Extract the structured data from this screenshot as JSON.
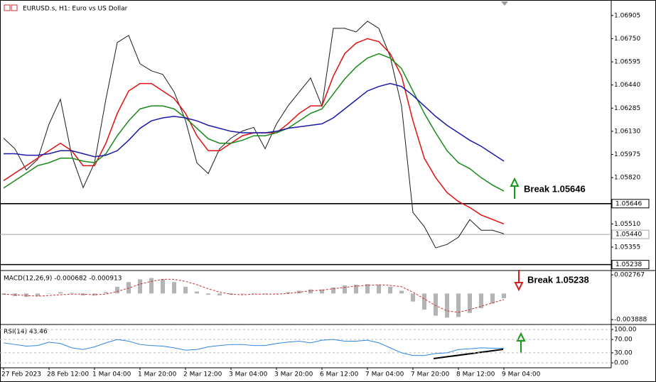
{
  "chart_data": [
    {
      "type": "line",
      "title": "EURUSD.s, H1: Euro vs US Dollar",
      "categories": [
        "27 Feb 2023",
        null,
        null,
        null,
        "28 Feb 12:00",
        null,
        null,
        null,
        "1 Mar 04:00",
        null,
        null,
        null,
        "1 Mar 20:00",
        null,
        null,
        null,
        "2 Mar 12:00",
        null,
        null,
        null,
        "3 Mar 04:00",
        null,
        null,
        null,
        "3 Mar 20:00",
        null,
        null,
        null,
        "6 Mar 12:00",
        null,
        null,
        null,
        "7 Mar 04:00",
        null,
        null,
        null,
        "7 Mar 20:00",
        null,
        null,
        null,
        "8 Mar 12:00",
        null,
        null,
        null,
        "9 Mar 04:00"
      ],
      "series": [
        {
          "color": "#1a1a1a",
          "values": [
            1.06084,
            1.06013,
            1.05871,
            1.05942,
            1.06179,
            1.06345,
            1.05966,
            1.05753,
            1.05919,
            1.06345,
            1.06724,
            1.06772,
            1.06582,
            1.06535,
            1.06511,
            1.06393,
            1.06203,
            1.05919,
            1.05847,
            1.06013,
            1.06084,
            1.06132,
            1.06156,
            1.06013,
            1.06179,
            1.06298,
            1.06393,
            1.06487,
            1.06298,
            1.06819,
            1.06819,
            1.06795,
            1.06867,
            1.06819,
            1.0663,
            1.06298,
            1.05587,
            1.05492,
            1.0535,
            1.05373,
            1.05421,
            1.05539,
            1.05468,
            1.05468,
            1.05444
          ]
        },
        {
          "color": "#e01010",
          "values": [
            1.058,
            1.0585,
            1.059,
            1.0595,
            1.06,
            1.0605,
            1.06,
            1.059,
            1.059,
            1.0605,
            1.0625,
            1.064,
            1.0645,
            1.0645,
            1.064,
            1.0635,
            1.0625,
            1.061,
            1.06,
            1.06,
            1.0605,
            1.061,
            1.0612,
            1.0612,
            1.0612,
            1.0618,
            1.0625,
            1.063,
            1.063,
            1.065,
            1.0665,
            1.0672,
            1.0675,
            1.0673,
            1.0665,
            1.065,
            1.062,
            1.0595,
            1.0582,
            1.0572,
            1.0566,
            1.0562,
            1.0557,
            1.0554,
            1.0551
          ]
        },
        {
          "color": "#1a8a1a",
          "values": [
            1.0575,
            1.058,
            1.0585,
            1.059,
            1.0592,
            1.0595,
            1.0595,
            1.0593,
            1.0592,
            1.0598,
            1.061,
            1.062,
            1.0628,
            1.063,
            1.063,
            1.0628,
            1.0622,
            1.0615,
            1.0608,
            1.0605,
            1.0605,
            1.0607,
            1.061,
            1.061,
            1.0612,
            1.0615,
            1.062,
            1.0625,
            1.0628,
            1.0638,
            1.0648,
            1.0656,
            1.0662,
            1.0665,
            1.0662,
            1.0655,
            1.064,
            1.0625,
            1.0612,
            1.06,
            1.0592,
            1.0588,
            1.0582,
            1.0577,
            1.0573
          ]
        },
        {
          "color": "#1a1aa8",
          "values": [
            1.0598,
            1.0598,
            1.0597,
            1.0597,
            1.0598,
            1.06,
            1.06,
            1.0598,
            1.0596,
            1.0597,
            1.06,
            1.0607,
            1.0615,
            1.062,
            1.0622,
            1.0623,
            1.0622,
            1.062,
            1.0617,
            1.0615,
            1.0613,
            1.0612,
            1.0612,
            1.0612,
            1.0613,
            1.0615,
            1.0616,
            1.0617,
            1.0618,
            1.0622,
            1.0628,
            1.0634,
            1.064,
            1.0643,
            1.0645,
            1.0643,
            1.0637,
            1.063,
            1.0623,
            1.0617,
            1.0612,
            1.0607,
            1.0603,
            1.0598,
            1.0593
          ]
        }
      ],
      "ylim": [
        1.05203,
        1.06985
      ],
      "yticks": [
        {
          "value": 1.06905,
          "label": "1.06905"
        },
        {
          "value": 1.0675,
          "label": "1.06750"
        },
        {
          "value": 1.06595,
          "label": "1.06595"
        },
        {
          "value": 1.0644,
          "label": "1.06440"
        },
        {
          "value": 1.06285,
          "label": "1.06285"
        },
        {
          "value": 1.0613,
          "label": "1.06130"
        },
        {
          "value": 1.05975,
          "label": "1.05975"
        },
        {
          "value": 1.0582,
          "label": "1.05820"
        },
        {
          "value": 1.0551,
          "label": "1.05510"
        },
        {
          "value": 1.05355,
          "label": "1.05355"
        }
      ],
      "hlines": [
        {
          "value": 1.05646,
          "label": "1.05646",
          "color": "#000000"
        },
        {
          "value": 1.0544,
          "label": "1.05440",
          "color": "#a0a0a0"
        },
        {
          "value": 1.05238,
          "label": "1.05238",
          "color": "#000000"
        }
      ],
      "annotations": [
        "Break 1.05646",
        "Break 1.05238"
      ]
    },
    {
      "type": "bar",
      "title": "MACD(12,26,9) -0.000682 -0.000913",
      "series": [
        {
          "color": "#b4b4b4",
          "values": [
            -0.0002,
            -0.0004,
            -0.0005,
            -0.0004,
            0.0,
            0.0002,
            0.0001,
            -0.0003,
            -0.0003,
            0.0002,
            0.001,
            0.0017,
            0.0021,
            0.0023,
            0.0021,
            0.0017,
            0.001,
            0.0003,
            -0.0002,
            -0.0003,
            -0.0002,
            -0.0001,
            0.0,
            -0.0001,
            0.0,
            0.0002,
            0.0004,
            0.0006,
            0.0006,
            0.0009,
            0.0012,
            0.0013,
            0.0014,
            0.0013,
            0.001,
            0.0004,
            -0.0012,
            -0.0024,
            -0.0033,
            -0.0036,
            -0.0035,
            -0.0029,
            -0.0022,
            -0.0015,
            -0.0007
          ]
        },
        {
          "color": "#d03030",
          "style": "dashed",
          "values": [
            -0.0001,
            -0.0002,
            -0.0003,
            -0.0004,
            -0.0003,
            -0.0002,
            -0.0001,
            -0.0001,
            -0.0002,
            -0.0001,
            0.0003,
            0.0008,
            0.0014,
            0.0018,
            0.0021,
            0.0021,
            0.0018,
            0.0013,
            0.0007,
            0.0002,
            -0.0001,
            -0.0002,
            -0.0001,
            -0.0001,
            -0.0001,
            0.0,
            0.0002,
            0.0004,
            0.0005,
            0.0007,
            0.0009,
            0.0011,
            0.0012,
            0.0013,
            0.0012,
            0.001,
            0.0002,
            -0.0008,
            -0.0018,
            -0.0026,
            -0.0028,
            -0.0024,
            -0.0019,
            -0.0014,
            -0.0009
          ]
        }
      ],
      "ylim": [
        -0.0044,
        0.0032
      ],
      "yticks": [
        0.002767,
        -0.003888
      ]
    },
    {
      "type": "line",
      "title": "RSI(14) 43.46",
      "series": [
        {
          "color": "#2e86de",
          "values": [
            60,
            55,
            50,
            52,
            62,
            58,
            45,
            40,
            48,
            60,
            70,
            65,
            55,
            52,
            50,
            45,
            38,
            40,
            48,
            52,
            55,
            55,
            52,
            52,
            58,
            62,
            65,
            60,
            68,
            70,
            65,
            65,
            68,
            60,
            45,
            30,
            22,
            22,
            28,
            30,
            40,
            42,
            45,
            44,
            43.46
          ]
        }
      ],
      "ylim": [
        -15,
        113
      ],
      "yticks": [
        {
          "value": 100,
          "label": "100.00"
        },
        {
          "value": 70,
          "label": "70.00"
        },
        {
          "value": 30,
          "label": "30.00"
        },
        {
          "value": 0,
          "label": "0.00"
        }
      ],
      "grid": true
    }
  ]
}
